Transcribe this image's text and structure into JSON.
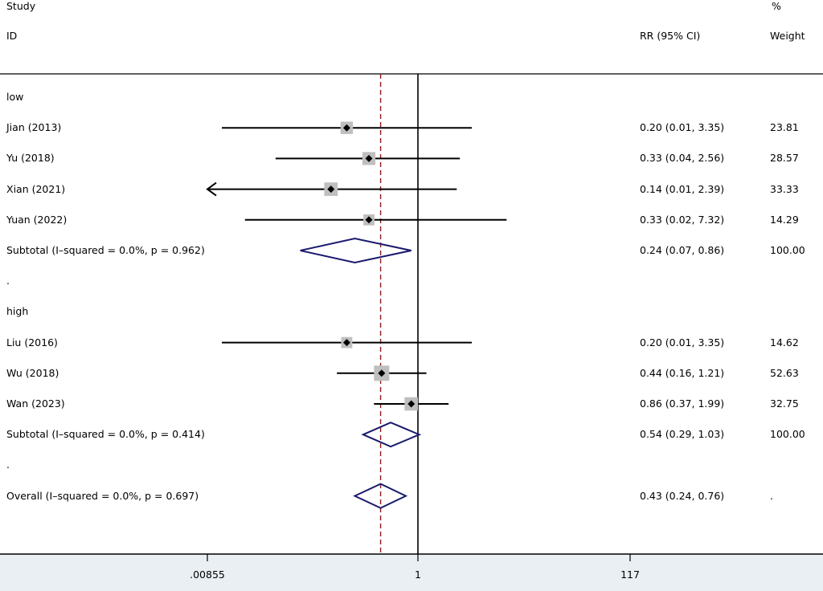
{
  "header": {
    "study_label": "Study",
    "id_label": "ID",
    "effect_label": "RR (95% CI)",
    "pct_label": "%",
    "weight_label": "Weight"
  },
  "colors": {
    "ci_line": "#000000",
    "square": "#bfbfbf",
    "diamond": "#1a1a6e",
    "ref_dashed": "#8b1a1a",
    "axis_band": "#e9eff2"
  },
  "chart_data": {
    "type": "forest",
    "scale": "log",
    "null_value": 1,
    "overall_estimate": 0.43,
    "xlim": [
      0.00855,
      117
    ],
    "xticks": [
      0.00855,
      1,
      117
    ],
    "xtick_labels": [
      ".00855",
      "1",
      "117"
    ],
    "rows": [
      {
        "kind": "group",
        "label": "low"
      },
      {
        "kind": "study",
        "label": "Jian (2013)",
        "rr": 0.2,
        "lo": 0.01,
        "hi": 3.35,
        "text": "0.20 (0.01, 3.35)",
        "weight": "23.81"
      },
      {
        "kind": "study",
        "label": "Yu (2018)",
        "rr": 0.33,
        "lo": 0.04,
        "hi": 2.56,
        "text": "0.33 (0.04, 2.56)",
        "weight": "28.57"
      },
      {
        "kind": "study",
        "label": "Xian (2021)",
        "rr": 0.14,
        "lo": 0.01,
        "hi": 2.39,
        "text": "0.14 (0.01, 2.39)",
        "weight": "33.33",
        "arrow_left": true
      },
      {
        "kind": "study",
        "label": "Yuan (2022)",
        "rr": 0.33,
        "lo": 0.02,
        "hi": 7.32,
        "text": "0.33 (0.02, 7.32)",
        "weight": "14.29"
      },
      {
        "kind": "subtotal",
        "label": "Subtotal  (I–squared = 0.0%, p = 0.962)",
        "rr": 0.24,
        "lo": 0.07,
        "hi": 0.86,
        "text": "0.24 (0.07, 0.86)",
        "weight": "100.00"
      },
      {
        "kind": "spacer",
        "label": "."
      },
      {
        "kind": "group",
        "label": "high"
      },
      {
        "kind": "study",
        "label": "Liu (2016)",
        "rr": 0.2,
        "lo": 0.01,
        "hi": 3.35,
        "text": "0.20 (0.01, 3.35)",
        "weight": "14.62"
      },
      {
        "kind": "study",
        "label": "Wu (2018)",
        "rr": 0.44,
        "lo": 0.16,
        "hi": 1.21,
        "text": "0.44 (0.16, 1.21)",
        "weight": "52.63"
      },
      {
        "kind": "study",
        "label": "Wan (2023)",
        "rr": 0.86,
        "lo": 0.37,
        "hi": 1.99,
        "text": "0.86 (0.37, 1.99)",
        "weight": "32.75"
      },
      {
        "kind": "subtotal",
        "label": "Subtotal  (I–squared = 0.0%, p = 0.414)",
        "rr": 0.54,
        "lo": 0.29,
        "hi": 1.03,
        "text": "0.54 (0.29, 1.03)",
        "weight": "100.00"
      },
      {
        "kind": "spacer",
        "label": "."
      },
      {
        "kind": "overall",
        "label": "Overall  (I–squared = 0.0%, p = 0.697)",
        "rr": 0.43,
        "lo": 0.24,
        "hi": 0.76,
        "text": "0.43 (0.24, 0.76)",
        "weight": "."
      }
    ]
  }
}
